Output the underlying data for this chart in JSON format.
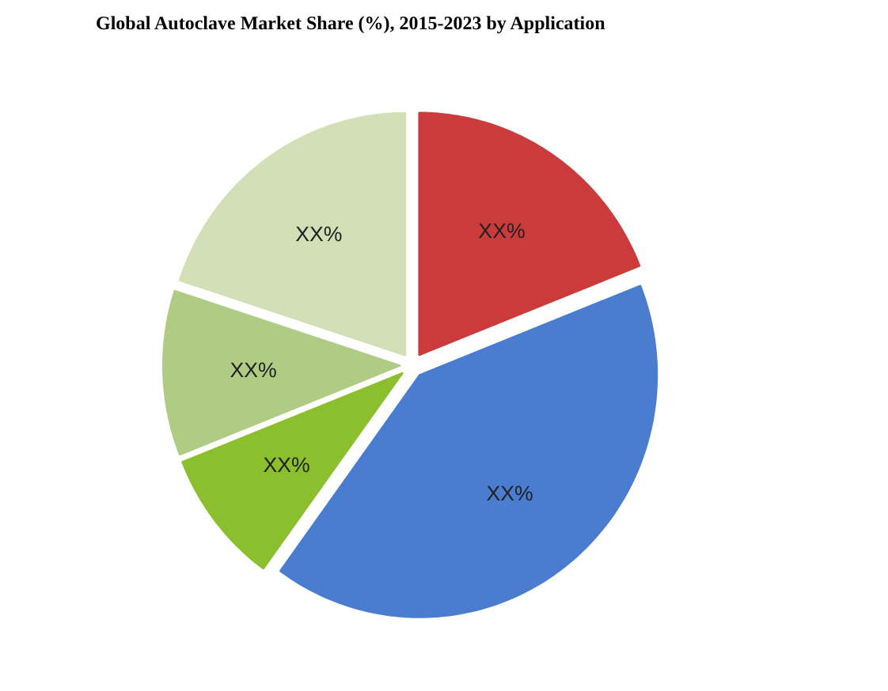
{
  "chart_data": {
    "type": "pie",
    "title": "Global Autoclave Market Share (%), 2015-2023 by Application",
    "categories": [
      null,
      null,
      null,
      null,
      null
    ],
    "values": [
      19,
      41,
      9,
      11,
      20
    ],
    "colors": [
      "#cc3b3b",
      "#4a7cd0",
      "#8cbf2e",
      "#b0cc84",
      "#d3dfb6"
    ],
    "value_labels": [
      "XX%",
      "XX%",
      "XX%",
      "XX%",
      "XX%"
    ]
  }
}
